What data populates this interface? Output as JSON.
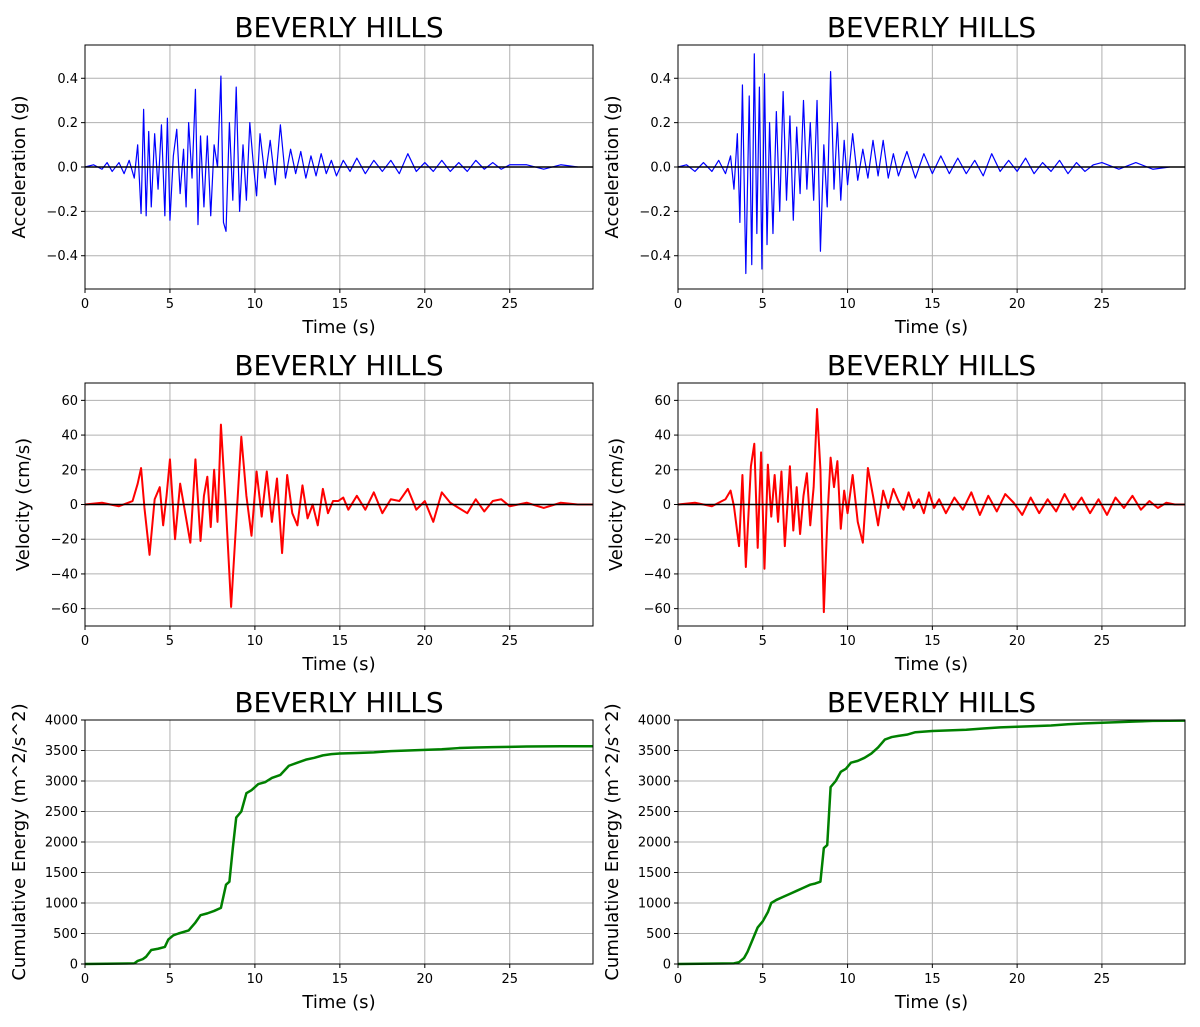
{
  "figure": {
    "colors": {
      "acceleration": "#0000ff",
      "velocity": "#ff0000",
      "energy": "#008000",
      "grid": "#b0b0b0",
      "zero_line": "#000000"
    }
  },
  "chart_data": [
    {
      "type": "line",
      "title": "BEVERLY HILLS",
      "xlabel": "Time (s)",
      "ylabel": "Acceleration (g)",
      "xlim": [
        0,
        29.9
      ],
      "ylim": [
        -0.55,
        0.55
      ],
      "xticks": [
        0,
        5,
        10,
        15,
        20,
        25
      ],
      "yticks": [
        -0.4,
        -0.2,
        0.0,
        0.2,
        0.4
      ],
      "ytick_labels": [
        "−0.4",
        "−0.2",
        "0.0",
        "0.2",
        "0.4"
      ],
      "grid": true,
      "zero_line": true,
      "series": [
        {
          "color": "#0000ff",
          "x": [
            0,
            0.5,
            1.0,
            1.3,
            1.6,
            2.0,
            2.3,
            2.6,
            2.9,
            3.1,
            3.3,
            3.45,
            3.6,
            3.75,
            3.9,
            4.1,
            4.3,
            4.5,
            4.7,
            4.85,
            5.0,
            5.2,
            5.4,
            5.6,
            5.8,
            5.95,
            6.1,
            6.3,
            6.5,
            6.65,
            6.8,
            7.0,
            7.2,
            7.4,
            7.6,
            7.8,
            8.0,
            8.15,
            8.3,
            8.5,
            8.7,
            8.9,
            9.1,
            9.3,
            9.5,
            9.7,
            9.9,
            10.1,
            10.3,
            10.6,
            10.9,
            11.2,
            11.5,
            11.8,
            12.1,
            12.4,
            12.7,
            13.0,
            13.3,
            13.6,
            13.9,
            14.2,
            14.5,
            14.8,
            15.2,
            15.6,
            16.0,
            16.5,
            17.0,
            17.5,
            18.0,
            18.5,
            19.0,
            19.5,
            20.0,
            20.5,
            21.0,
            21.5,
            22.0,
            22.5,
            23.0,
            23.5,
            24.0,
            24.5,
            25.0,
            26.0,
            27.0,
            28.0,
            29.0
          ],
          "values": [
            0,
            0.01,
            -0.01,
            0.02,
            -0.02,
            0.02,
            -0.03,
            0.03,
            -0.05,
            0.1,
            -0.21,
            0.26,
            -0.22,
            0.16,
            -0.18,
            0.15,
            -0.1,
            0.19,
            -0.22,
            0.22,
            -0.24,
            0.05,
            0.17,
            -0.12,
            0.08,
            -0.18,
            0.2,
            -0.05,
            0.35,
            -0.26,
            0.14,
            -0.18,
            0.14,
            -0.22,
            0.1,
            0.0,
            0.41,
            -0.25,
            -0.29,
            0.2,
            -0.15,
            0.36,
            -0.2,
            0.1,
            -0.15,
            0.2,
            0.02,
            -0.13,
            0.15,
            -0.05,
            0.12,
            -0.08,
            0.19,
            -0.05,
            0.08,
            -0.03,
            0.07,
            -0.05,
            0.05,
            -0.04,
            0.06,
            -0.03,
            0.03,
            -0.04,
            0.03,
            -0.02,
            0.04,
            -0.03,
            0.03,
            -0.02,
            0.03,
            -0.03,
            0.06,
            -0.02,
            0.02,
            -0.02,
            0.03,
            -0.02,
            0.02,
            -0.02,
            0.03,
            -0.01,
            0.02,
            -0.01,
            0.01,
            0.01,
            -0.01,
            0.01,
            0
          ]
        }
      ]
    },
    {
      "type": "line",
      "title": "BEVERLY HILLS",
      "xlabel": "Time (s)",
      "ylabel": "Acceleration (g)",
      "xlim": [
        0,
        29.9
      ],
      "ylim": [
        -0.55,
        0.55
      ],
      "xticks": [
        0,
        5,
        10,
        15,
        20,
        25
      ],
      "yticks": [
        -0.4,
        -0.2,
        0.0,
        0.2,
        0.4
      ],
      "ytick_labels": [
        "−0.4",
        "−0.2",
        "0.0",
        "0.2",
        "0.4"
      ],
      "grid": true,
      "zero_line": true,
      "series": [
        {
          "color": "#0000ff",
          "x": [
            0,
            0.5,
            1.0,
            1.5,
            2.0,
            2.4,
            2.8,
            3.1,
            3.3,
            3.5,
            3.65,
            3.8,
            4.0,
            4.2,
            4.35,
            4.5,
            4.65,
            4.8,
            4.95,
            5.1,
            5.25,
            5.4,
            5.6,
            5.8,
            6.0,
            6.2,
            6.4,
            6.6,
            6.8,
            7.0,
            7.2,
            7.4,
            7.6,
            7.8,
            8.0,
            8.2,
            8.4,
            8.6,
            8.8,
            9.0,
            9.2,
            9.4,
            9.6,
            9.8,
            10.0,
            10.3,
            10.6,
            10.9,
            11.2,
            11.5,
            11.8,
            12.1,
            12.4,
            12.7,
            13.0,
            13.5,
            14.0,
            14.5,
            15.0,
            15.5,
            16.0,
            16.5,
            17.0,
            17.5,
            18.0,
            18.5,
            19.0,
            19.5,
            20.0,
            20.5,
            21.0,
            21.5,
            22.0,
            22.5,
            23.0,
            23.5,
            24.0,
            24.5,
            25.0,
            26.0,
            27.0,
            28.0,
            29.0
          ],
          "values": [
            0,
            0.01,
            -0.02,
            0.02,
            -0.02,
            0.03,
            -0.03,
            0.05,
            -0.1,
            0.15,
            -0.25,
            0.37,
            -0.48,
            0.32,
            -0.44,
            0.51,
            -0.3,
            0.36,
            -0.46,
            0.42,
            -0.35,
            0.2,
            -0.3,
            0.25,
            -0.2,
            0.34,
            -0.15,
            0.23,
            -0.24,
            0.18,
            -0.12,
            0.3,
            -0.1,
            0.2,
            -0.15,
            0.3,
            -0.38,
            0.1,
            -0.18,
            0.43,
            -0.1,
            0.2,
            -0.15,
            0.12,
            -0.08,
            0.15,
            -0.06,
            0.08,
            -0.05,
            0.12,
            -0.04,
            0.12,
            -0.05,
            0.06,
            -0.04,
            0.07,
            -0.05,
            0.06,
            -0.03,
            0.05,
            -0.03,
            0.04,
            -0.03,
            0.03,
            -0.04,
            0.06,
            -0.02,
            0.03,
            -0.02,
            0.04,
            -0.03,
            0.02,
            -0.02,
            0.03,
            -0.03,
            0.02,
            -0.02,
            0.01,
            0.02,
            -0.01,
            0.02,
            -0.01,
            0
          ]
        }
      ]
    },
    {
      "type": "line",
      "title": "BEVERLY HILLS",
      "xlabel": "Time (s)",
      "ylabel": "Velocity (cm/s)",
      "xlim": [
        0,
        29.9
      ],
      "ylim": [
        -70,
        70
      ],
      "xticks": [
        0,
        5,
        10,
        15,
        20,
        25
      ],
      "yticks": [
        -60,
        -40,
        -20,
        0,
        20,
        40,
        60
      ],
      "ytick_labels": [
        "−60",
        "−40",
        "−20",
        "0",
        "20",
        "40",
        "60"
      ],
      "grid": true,
      "zero_line": true,
      "series": [
        {
          "color": "#ff0000",
          "x": [
            0,
            1.0,
            2.0,
            2.8,
            3.1,
            3.3,
            3.5,
            3.8,
            4.1,
            4.4,
            4.6,
            4.8,
            5.0,
            5.3,
            5.6,
            5.9,
            6.2,
            6.5,
            6.8,
            7.0,
            7.2,
            7.4,
            7.6,
            7.8,
            8.0,
            8.3,
            8.6,
            8.9,
            9.2,
            9.5,
            9.8,
            10.1,
            10.4,
            10.7,
            11.0,
            11.3,
            11.6,
            11.9,
            12.2,
            12.5,
            12.8,
            13.1,
            13.4,
            13.7,
            14.0,
            14.3,
            14.6,
            14.9,
            15.2,
            15.5,
            16.0,
            16.5,
            17.0,
            17.5,
            18.0,
            18.5,
            19.0,
            19.5,
            20.0,
            20.5,
            21.0,
            21.5,
            22.0,
            22.5,
            23.0,
            23.5,
            24.0,
            24.5,
            25.0,
            26.0,
            27.0,
            28.0,
            29.0,
            29.9
          ],
          "values": [
            0,
            1,
            -1,
            2,
            12,
            21,
            -2,
            -29,
            3,
            10,
            -12,
            5,
            26,
            -20,
            12,
            -5,
            -22,
            26,
            -21,
            5,
            16,
            -13,
            20,
            -10,
            46,
            -3,
            -59,
            -10,
            39,
            5,
            -18,
            19,
            -7,
            19,
            -10,
            15,
            -28,
            17,
            -5,
            -12,
            11,
            -8,
            0,
            -12,
            9,
            -5,
            2,
            2,
            4,
            -3,
            5,
            -3,
            7,
            -5,
            3,
            2,
            9,
            -3,
            2,
            -10,
            7,
            1,
            -2,
            -5,
            3,
            -4,
            2,
            3,
            -1,
            1,
            -2,
            1,
            0,
            0
          ]
        }
      ]
    },
    {
      "type": "line",
      "title": "BEVERLY HILLS",
      "xlabel": "Time (s)",
      "ylabel": "Velocity (cm/s)",
      "xlim": [
        0,
        29.9
      ],
      "ylim": [
        -70,
        70
      ],
      "xticks": [
        0,
        5,
        10,
        15,
        20,
        25
      ],
      "yticks": [
        -60,
        -40,
        -20,
        0,
        20,
        40,
        60
      ],
      "ytick_labels": [
        "−60",
        "−40",
        "−20",
        "0",
        "20",
        "40",
        "60"
      ],
      "grid": true,
      "zero_line": true,
      "series": [
        {
          "color": "#ff0000",
          "x": [
            0,
            1.0,
            2.0,
            2.8,
            3.1,
            3.3,
            3.6,
            3.8,
            4.0,
            4.3,
            4.5,
            4.7,
            4.9,
            5.1,
            5.3,
            5.5,
            5.7,
            5.9,
            6.1,
            6.3,
            6.6,
            6.8,
            7.0,
            7.2,
            7.4,
            7.6,
            7.8,
            8.0,
            8.2,
            8.4,
            8.6,
            8.8,
            9.0,
            9.2,
            9.4,
            9.6,
            9.8,
            10.0,
            10.3,
            10.6,
            10.9,
            11.2,
            11.5,
            11.8,
            12.1,
            12.4,
            12.7,
            13.0,
            13.3,
            13.6,
            13.9,
            14.2,
            14.5,
            14.8,
            15.1,
            15.4,
            15.8,
            16.3,
            16.8,
            17.3,
            17.8,
            18.3,
            18.8,
            19.3,
            19.8,
            20.3,
            20.8,
            21.3,
            21.8,
            22.3,
            22.8,
            23.3,
            23.8,
            24.3,
            24.8,
            25.3,
            25.8,
            26.3,
            26.8,
            27.3,
            27.8,
            28.3,
            28.8,
            29.3,
            29.9
          ],
          "values": [
            0,
            1,
            -1,
            3,
            8,
            -1,
            -24,
            17,
            -36,
            22,
            35,
            -25,
            30,
            -37,
            23,
            -7,
            17,
            -10,
            19,
            -24,
            22,
            -15,
            10,
            -17,
            5,
            18,
            -12,
            10,
            55,
            20,
            -62,
            -10,
            27,
            10,
            25,
            -14,
            8,
            -5,
            17,
            -10,
            -22,
            21,
            5,
            -12,
            8,
            -2,
            9,
            2,
            -3,
            7,
            -2,
            3,
            -5,
            7,
            -2,
            3,
            -5,
            4,
            -3,
            7,
            -6,
            5,
            -4,
            6,
            1,
            -6,
            4,
            -5,
            3,
            -4,
            6,
            -3,
            4,
            -5,
            3,
            -6,
            4,
            -2,
            5,
            -3,
            2,
            -2,
            1,
            0,
            0
          ]
        }
      ]
    },
    {
      "type": "line",
      "title": "BEVERLY HILLS",
      "xlabel": "Time (s)",
      "ylabel": "Cumulative Energy (m^2/s^2)",
      "xlim": [
        0,
        29.9
      ],
      "ylim": [
        0,
        4000
      ],
      "xticks": [
        0,
        5,
        10,
        15,
        20,
        25
      ],
      "yticks": [
        0,
        500,
        1000,
        1500,
        2000,
        2500,
        3000,
        3500,
        4000
      ],
      "ytick_labels": [
        "0",
        "500",
        "1000",
        "1500",
        "2000",
        "2500",
        "3000",
        "3500",
        "4000"
      ],
      "grid": true,
      "zero_line": false,
      "series": [
        {
          "color": "#008000",
          "x": [
            0,
            2.9,
            3.1,
            3.4,
            3.6,
            3.9,
            4.3,
            4.7,
            4.9,
            5.2,
            5.5,
            6.1,
            6.5,
            6.8,
            7.2,
            7.6,
            8.0,
            8.3,
            8.5,
            8.7,
            8.9,
            9.2,
            9.5,
            9.8,
            10.2,
            10.6,
            11.0,
            11.5,
            12.0,
            12.5,
            13.0,
            13.5,
            14.0,
            14.5,
            15.0,
            16.0,
            17.0,
            18.0,
            19.0,
            20.0,
            21.0,
            22.0,
            23.0,
            24.0,
            25.0,
            26.0,
            27.0,
            28.0,
            29.9
          ],
          "values": [
            0,
            10,
            50,
            80,
            120,
            230,
            250,
            280,
            400,
            470,
            500,
            550,
            680,
            800,
            830,
            870,
            920,
            1300,
            1350,
            1900,
            2400,
            2500,
            2800,
            2850,
            2950,
            2980,
            3050,
            3100,
            3250,
            3300,
            3350,
            3380,
            3420,
            3440,
            3450,
            3460,
            3470,
            3490,
            3500,
            3510,
            3520,
            3540,
            3550,
            3555,
            3560,
            3565,
            3568,
            3570,
            3570
          ]
        }
      ]
    },
    {
      "type": "line",
      "title": "BEVERLY HILLS",
      "xlabel": "Time (s)",
      "ylabel": "Cumulative Energy (m^2/s^2)",
      "xlim": [
        0,
        29.9
      ],
      "ylim": [
        0,
        4000
      ],
      "xticks": [
        0,
        5,
        10,
        15,
        20,
        25
      ],
      "yticks": [
        0,
        500,
        1000,
        1500,
        2000,
        2500,
        3000,
        3500,
        4000
      ],
      "ytick_labels": [
        "0",
        "500",
        "1000",
        "1500",
        "2000",
        "2500",
        "3000",
        "3500",
        "4000"
      ],
      "grid": true,
      "zero_line": false,
      "series": [
        {
          "color": "#008000",
          "x": [
            0,
            3.3,
            3.6,
            3.9,
            4.1,
            4.4,
            4.7,
            5.0,
            5.3,
            5.5,
            5.8,
            6.2,
            6.6,
            7.0,
            7.4,
            7.8,
            8.1,
            8.4,
            8.6,
            8.8,
            9.0,
            9.3,
            9.6,
            9.9,
            10.2,
            10.6,
            11.0,
            11.4,
            11.8,
            12.2,
            12.6,
            13.0,
            13.5,
            14.0,
            14.5,
            15.0,
            16.0,
            17.0,
            18.0,
            19.0,
            20.0,
            21.0,
            22.0,
            23.0,
            24.0,
            25.0,
            26.0,
            27.0,
            28.0,
            29.9
          ],
          "values": [
            0,
            10,
            30,
            100,
            200,
            400,
            600,
            700,
            850,
            1000,
            1050,
            1100,
            1150,
            1200,
            1250,
            1300,
            1320,
            1350,
            1900,
            1950,
            2900,
            3000,
            3150,
            3200,
            3300,
            3330,
            3380,
            3450,
            3550,
            3680,
            3720,
            3740,
            3760,
            3800,
            3810,
            3820,
            3830,
            3840,
            3860,
            3880,
            3890,
            3900,
            3910,
            3930,
            3945,
            3955,
            3965,
            3975,
            3985,
            3990
          ]
        }
      ]
    }
  ]
}
